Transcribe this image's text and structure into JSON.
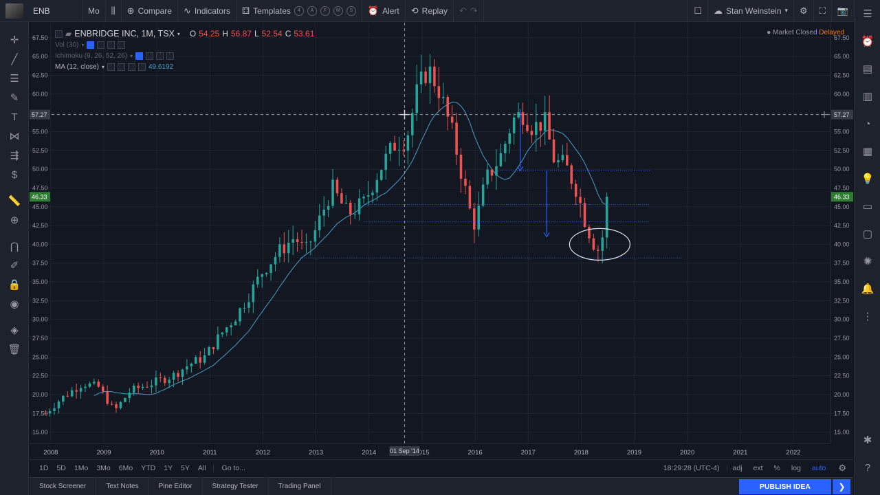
{
  "topbar": {
    "symbol": "ENB",
    "interval": "Mo",
    "compare": "Compare",
    "indicators": "Indicators",
    "templates": "Templates",
    "template_tags": [
      "4",
      "A",
      "F",
      "M",
      "S"
    ],
    "alert": "Alert",
    "replay": "Replay",
    "user": "Stan Weinstein"
  },
  "legend": {
    "title": "ENBRIDGE INC, 1M, TSX",
    "open_label": "O",
    "open": "54.25",
    "high_label": "H",
    "high": "56.87",
    "low_label": "L",
    "low": "52.54",
    "close_label": "C",
    "close": "53.61",
    "vol": "Vol (30)",
    "ichimoku": "Ichimoku (9, 26, 52, 26)",
    "ma": "MA (12, close)",
    "ma_value": "49.6192"
  },
  "market_status": {
    "closed": "Market Closed",
    "delayed": "Delayed"
  },
  "crosshair": {
    "price": "57.27",
    "date": "01 Sep '14"
  },
  "last_price": "46.33",
  "range_bar": {
    "ranges": [
      "1D",
      "5D",
      "1Mo",
      "3Mo",
      "6Mo",
      "YTD",
      "1Y",
      "5Y",
      "All"
    ],
    "goto": "Go to...",
    "clock": "18:29:28 (UTC-4)",
    "options": [
      "adj",
      "ext",
      "%",
      "log",
      "auto"
    ]
  },
  "bottom_tabs": [
    "Stock Screener",
    "Text Notes",
    "Pine Editor",
    "Strategy Tester",
    "Trading Panel"
  ],
  "publish": "PUBLISH IDEA",
  "colors": {
    "up": "#26a69a",
    "down": "#ef5350",
    "ma": "#4a9ec7",
    "accent": "#2962ff",
    "background": "#131722"
  },
  "chart_data": {
    "type": "candlestick",
    "y_ticks": [
      "67.50",
      "65.00",
      "62.50",
      "60.00",
      "57.50",
      "55.00",
      "52.50",
      "50.00",
      "47.50",
      "45.00",
      "42.50",
      "40.00",
      "37.50",
      "35.00",
      "32.50",
      "30.00",
      "27.50",
      "25.00",
      "22.50",
      "20.00",
      "17.50",
      "15.00"
    ],
    "x_ticks": [
      "2008",
      "2009",
      "2010",
      "2011",
      "2012",
      "2013",
      "2014",
      "2015",
      "2016",
      "2017",
      "2018",
      "2019",
      "2020",
      "2021",
      "2022"
    ],
    "ylim": [
      13.5,
      69.5
    ],
    "xlim": [
      2007.6,
      2022.7
    ],
    "price_anchors": [
      [
        2007.9,
        17.5
      ],
      [
        2008.2,
        19.5
      ],
      [
        2008.6,
        21.5
      ],
      [
        2008.9,
        21.0
      ],
      [
        2009.2,
        17.8
      ],
      [
        2009.5,
        20.5
      ],
      [
        2009.9,
        21.5
      ],
      [
        2010.3,
        22.5
      ],
      [
        2010.6,
        24.0
      ],
      [
        2010.9,
        25.0
      ],
      [
        2011.2,
        28.0
      ],
      [
        2011.5,
        30.5
      ],
      [
        2011.8,
        34.0
      ],
      [
        2012.0,
        36.5
      ],
      [
        2012.3,
        39.0
      ],
      [
        2012.6,
        41.0
      ],
      [
        2012.8,
        39.0
      ],
      [
        2013.0,
        42.0
      ],
      [
        2013.3,
        47.5
      ],
      [
        2013.6,
        44.0
      ],
      [
        2013.9,
        45.5
      ],
      [
        2014.2,
        50.0
      ],
      [
        2014.5,
        53.5
      ],
      [
        2014.7,
        54.0
      ],
      [
        2014.9,
        60.0
      ],
      [
        2015.1,
        63.5
      ],
      [
        2015.3,
        61.0
      ],
      [
        2015.6,
        54.0
      ],
      [
        2015.9,
        44.5
      ],
      [
        2016.0,
        42.5
      ],
      [
        2016.2,
        48.5
      ],
      [
        2016.5,
        52.0
      ],
      [
        2016.7,
        56.5
      ],
      [
        2016.9,
        57.5
      ],
      [
        2017.1,
        55.5
      ],
      [
        2017.3,
        56.5
      ],
      [
        2017.5,
        51.0
      ],
      [
        2017.7,
        50.5
      ],
      [
        2017.9,
        47.5
      ],
      [
        2018.1,
        42.5
      ],
      [
        2018.3,
        39.0
      ],
      [
        2018.45,
        42.0
      ],
      [
        2018.55,
        46.3
      ]
    ],
    "last_close": 46.33,
    "horizontal_lines": [
      49.8,
      45.3,
      43.0,
      38.2
    ],
    "annotations": {
      "arrows": [
        [
          2016.85,
          58.0,
          49.8
        ],
        [
          2017.35,
          49.8,
          41.0
        ]
      ],
      "ellipse_center": [
        2018.35,
        40.0
      ]
    }
  }
}
